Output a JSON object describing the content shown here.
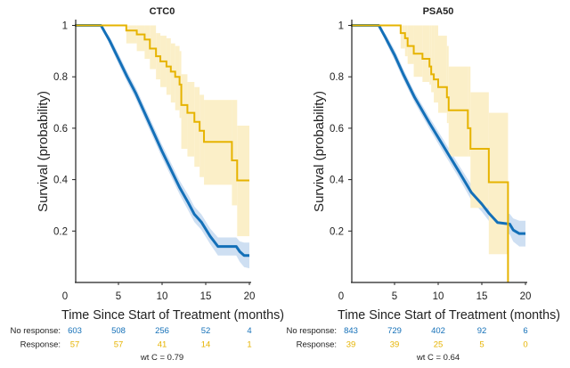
{
  "colors": {
    "no_response": "#1470b8",
    "response": "#e6b300",
    "no_response_ci": "#c9dcf1",
    "response_ci": "#fbefc8"
  },
  "chart_data": [
    {
      "type": "line",
      "title": "CTC0",
      "xlabel": "Time Since Start of Treatment (months)",
      "ylabel": "Survival (probability)",
      "xlim": [
        0,
        20
      ],
      "ylim": [
        0,
        1
      ],
      "xticks": [
        "0",
        "5",
        "10",
        "15",
        "20"
      ],
      "yticks": [
        "1",
        "0.8",
        "0.6",
        "0.4",
        "0.2"
      ],
      "grid": false,
      "series": [
        {
          "name": "No response",
          "color_key": "no_response",
          "points": [
            [
              0,
              1
            ],
            [
              3,
              1
            ],
            [
              4,
              0.94
            ],
            [
              5,
              0.87
            ],
            [
              6,
              0.8
            ],
            [
              7,
              0.735
            ],
            [
              8,
              0.66
            ],
            [
              9,
              0.585
            ],
            [
              10,
              0.51
            ],
            [
              11,
              0.44
            ],
            [
              12,
              0.37
            ],
            [
              13,
              0.31
            ],
            [
              13.7,
              0.265
            ],
            [
              14.5,
              0.235
            ],
            [
              15.5,
              0.18
            ],
            [
              16.4,
              0.14
            ],
            [
              18.5,
              0.14
            ],
            [
              18.9,
              0.12
            ],
            [
              19.4,
              0.105
            ],
            [
              20,
              0.105
            ]
          ],
          "ci_lower": [
            1,
            1,
            0.925,
            0.85,
            0.78,
            0.713,
            0.637,
            0.561,
            0.485,
            0.414,
            0.343,
            0.28,
            0.235,
            0.205,
            0.15,
            0.105,
            0.105,
            0.08,
            0.06,
            0.055
          ],
          "ci_upper": [
            1,
            1,
            0.955,
            0.89,
            0.82,
            0.757,
            0.683,
            0.609,
            0.535,
            0.466,
            0.397,
            0.34,
            0.295,
            0.265,
            0.21,
            0.175,
            0.175,
            0.16,
            0.155,
            0.155
          ]
        },
        {
          "name": "Response",
          "color_key": "response",
          "points": [
            [
              0,
              1
            ],
            [
              5.9,
              0.98
            ],
            [
              7.1,
              0.965
            ],
            [
              8.0,
              0.945
            ],
            [
              8.6,
              0.91
            ],
            [
              9.3,
              0.88
            ],
            [
              9.8,
              0.86
            ],
            [
              10.5,
              0.84
            ],
            [
              11.0,
              0.82
            ],
            [
              11.5,
              0.8
            ],
            [
              12.0,
              0.77
            ],
            [
              12.2,
              0.69
            ],
            [
              12.9,
              0.66
            ],
            [
              13.7,
              0.625
            ],
            [
              14.3,
              0.59
            ],
            [
              14.8,
              0.547
            ],
            [
              18.0,
              0.475
            ],
            [
              18.6,
              0.397
            ],
            [
              20,
              0.397
            ]
          ],
          "ci_lower": [
            1,
            0.93,
            0.9,
            0.87,
            0.83,
            0.79,
            0.76,
            0.73,
            0.7,
            0.67,
            0.64,
            0.52,
            0.49,
            0.45,
            0.41,
            0.38,
            0.3,
            0.18,
            0.18
          ],
          "ci_upper": [
            1,
            1,
            1,
            1,
            1,
            0.97,
            0.96,
            0.95,
            0.93,
            0.92,
            0.9,
            0.81,
            0.78,
            0.76,
            0.73,
            0.71,
            0.71,
            0.61,
            0.61
          ]
        }
      ],
      "risk_table": {
        "times": [
          0,
          5,
          10,
          15,
          20
        ],
        "rows": [
          {
            "label": "No response:",
            "color_key": "no_response",
            "values": [
              "603",
              "508",
              "256",
              "52",
              "4"
            ]
          },
          {
            "label": "Response:",
            "color_key": "response",
            "values": [
              "57",
              "57",
              "41",
              "14",
              "1"
            ]
          }
        ]
      },
      "annotation": "wt C = 0.79"
    },
    {
      "type": "line",
      "title": "PSA50",
      "xlabel": "Time Since Start of Treatment (months)",
      "ylabel": "Survival (probability)",
      "xlim": [
        0,
        20
      ],
      "ylim": [
        0,
        1
      ],
      "xticks": [
        "0",
        "5",
        "10",
        "15",
        "20"
      ],
      "yticks": [
        "1",
        "0.8",
        "0.6",
        "0.4",
        "0.2"
      ],
      "grid": false,
      "series": [
        {
          "name": "No response",
          "color_key": "no_response",
          "points": [
            [
              0,
              1
            ],
            [
              3.2,
              1
            ],
            [
              4,
              0.95
            ],
            [
              5,
              0.885
            ],
            [
              6,
              0.81
            ],
            [
              7.3,
              0.72
            ],
            [
              9,
              0.62
            ],
            [
              10.7,
              0.525
            ],
            [
              12.4,
              0.43
            ],
            [
              13.8,
              0.35
            ],
            [
              15,
              0.305
            ],
            [
              15.8,
              0.27
            ],
            [
              16.8,
              0.233
            ],
            [
              18.2,
              0.227
            ],
            [
              18.6,
              0.204
            ],
            [
              19.3,
              0.19
            ],
            [
              20,
              0.19
            ]
          ],
          "ci_lower": [
            1,
            1,
            0.935,
            0.865,
            0.79,
            0.7,
            0.598,
            0.5,
            0.405,
            0.32,
            0.275,
            0.24,
            0.198,
            0.187,
            0.159,
            0.14,
            0.14
          ],
          "ci_upper": [
            1,
            1,
            0.965,
            0.905,
            0.83,
            0.74,
            0.642,
            0.55,
            0.455,
            0.38,
            0.335,
            0.3,
            0.268,
            0.267,
            0.249,
            0.24,
            0.24
          ]
        },
        {
          "name": "Response",
          "color_key": "response",
          "points": [
            [
              0,
              1
            ],
            [
              5.7,
              0.97
            ],
            [
              6.2,
              0.95
            ],
            [
              6.5,
              0.92
            ],
            [
              7.2,
              0.89
            ],
            [
              8.2,
              0.87
            ],
            [
              9.0,
              0.84
            ],
            [
              9.2,
              0.81
            ],
            [
              9.5,
              0.79
            ],
            [
              10.0,
              0.76
            ],
            [
              11.0,
              0.72
            ],
            [
              11.2,
              0.67
            ],
            [
              13.4,
              0.6
            ],
            [
              13.7,
              0.52
            ],
            [
              15.8,
              0.39
            ],
            [
              18.0,
              0
            ]
          ],
          "ci_lower": [
            1,
            0.91,
            0.88,
            0.85,
            0.8,
            0.78,
            0.77,
            0.74,
            0.7,
            0.66,
            0.62,
            0.49,
            0.49,
            0.29,
            0.11,
            0.11
          ],
          "ci_upper": [
            1,
            1,
            1,
            1,
            1,
            1,
            1,
            1,
            1,
            0.96,
            0.92,
            0.84,
            0.84,
            0.74,
            0.66,
            0.66
          ]
        }
      ],
      "risk_table": {
        "times": [
          0,
          5,
          10,
          15,
          20
        ],
        "rows": [
          {
            "label": "No response:",
            "color_key": "no_response",
            "values": [
              "843",
              "729",
              "402",
              "92",
              "6"
            ]
          },
          {
            "label": "Response:",
            "color_key": "response",
            "values": [
              "39",
              "39",
              "25",
              "5",
              "0"
            ]
          }
        ]
      },
      "annotation": "wt C = 0.64"
    }
  ]
}
